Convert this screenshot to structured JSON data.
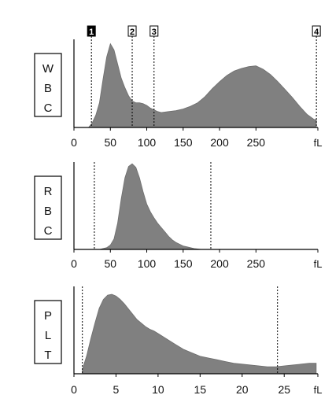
{
  "chart_data": [
    {
      "type": "area",
      "label": [
        "W",
        "B",
        "C"
      ],
      "unit": "fL",
      "xlim": [
        0,
        335
      ],
      "xticks": [
        0,
        50,
        100,
        150,
        200,
        250
      ],
      "ylim": [
        0,
        1
      ],
      "fill_color": "#808080",
      "markers": [
        {
          "label": "1",
          "x": 24,
          "style": "filled"
        },
        {
          "label": "2",
          "x": 80,
          "style": "outline"
        },
        {
          "label": "3",
          "x": 110,
          "style": "outline"
        },
        {
          "label": "4",
          "x": 333,
          "style": "outline"
        }
      ],
      "x": [
        20,
        25,
        30,
        35,
        40,
        45,
        50,
        55,
        60,
        65,
        70,
        75,
        80,
        85,
        90,
        95,
        100,
        105,
        110,
        115,
        120,
        130,
        140,
        150,
        160,
        170,
        180,
        190,
        200,
        210,
        220,
        230,
        240,
        250,
        260,
        270,
        280,
        290,
        300,
        310,
        320,
        330,
        333
      ],
      "y": [
        0,
        0.05,
        0.14,
        0.28,
        0.55,
        0.8,
        0.95,
        0.88,
        0.72,
        0.56,
        0.45,
        0.36,
        0.3,
        0.28,
        0.28,
        0.27,
        0.25,
        0.22,
        0.2,
        0.18,
        0.17,
        0.18,
        0.19,
        0.21,
        0.24,
        0.28,
        0.35,
        0.44,
        0.52,
        0.59,
        0.64,
        0.67,
        0.69,
        0.7,
        0.66,
        0.6,
        0.52,
        0.43,
        0.34,
        0.24,
        0.15,
        0.09,
        0.09
      ]
    },
    {
      "type": "area",
      "label": [
        "R",
        "B",
        "C"
      ],
      "unit": "fL",
      "xlim": [
        0,
        335
      ],
      "xticks": [
        0,
        50,
        100,
        150,
        200,
        250
      ],
      "ylim": [
        0,
        1
      ],
      "fill_color": "#808080",
      "markers": [
        {
          "label": "",
          "x": 28,
          "style": "line"
        },
        {
          "label": "",
          "x": 188,
          "style": "line"
        }
      ],
      "x": [
        30,
        35,
        40,
        45,
        50,
        55,
        60,
        65,
        70,
        75,
        80,
        85,
        90,
        95,
        100,
        105,
        110,
        115,
        120,
        125,
        130,
        135,
        140,
        145,
        150,
        155,
        160,
        165,
        170,
        175
      ],
      "y": [
        0,
        0,
        0.01,
        0.02,
        0.05,
        0.12,
        0.3,
        0.58,
        0.82,
        0.95,
        0.98,
        0.94,
        0.82,
        0.66,
        0.52,
        0.43,
        0.36,
        0.3,
        0.25,
        0.2,
        0.15,
        0.11,
        0.08,
        0.06,
        0.04,
        0.03,
        0.02,
        0.01,
        0.005,
        0
      ]
    },
    {
      "type": "area",
      "label": [
        "P",
        "L",
        "T"
      ],
      "unit": "fL",
      "xlim": [
        0,
        29
      ],
      "xticks": [
        0,
        5,
        10,
        15,
        20,
        25
      ],
      "ylim": [
        0,
        1
      ],
      "fill_color": "#808080",
      "markers": [
        {
          "label": "",
          "x": 1,
          "style": "line"
        },
        {
          "label": "",
          "x": 24.2,
          "style": "line"
        }
      ],
      "x": [
        1,
        1.5,
        2,
        2.5,
        3,
        3.5,
        4,
        4.5,
        5,
        5.5,
        6,
        6.5,
        7,
        7.5,
        8,
        8.5,
        9,
        9.5,
        10,
        11,
        12,
        13,
        14,
        15,
        16,
        17,
        18,
        19,
        20,
        21,
        22,
        23,
        24,
        25,
        26,
        27,
        28,
        28.8
      ],
      "y": [
        0.05,
        0.2,
        0.4,
        0.58,
        0.75,
        0.85,
        0.9,
        0.91,
        0.89,
        0.85,
        0.8,
        0.74,
        0.68,
        0.62,
        0.58,
        0.54,
        0.51,
        0.49,
        0.46,
        0.4,
        0.34,
        0.28,
        0.24,
        0.2,
        0.18,
        0.16,
        0.14,
        0.12,
        0.11,
        0.1,
        0.09,
        0.08,
        0.08,
        0.09,
        0.1,
        0.11,
        0.12,
        0.12
      ]
    }
  ]
}
